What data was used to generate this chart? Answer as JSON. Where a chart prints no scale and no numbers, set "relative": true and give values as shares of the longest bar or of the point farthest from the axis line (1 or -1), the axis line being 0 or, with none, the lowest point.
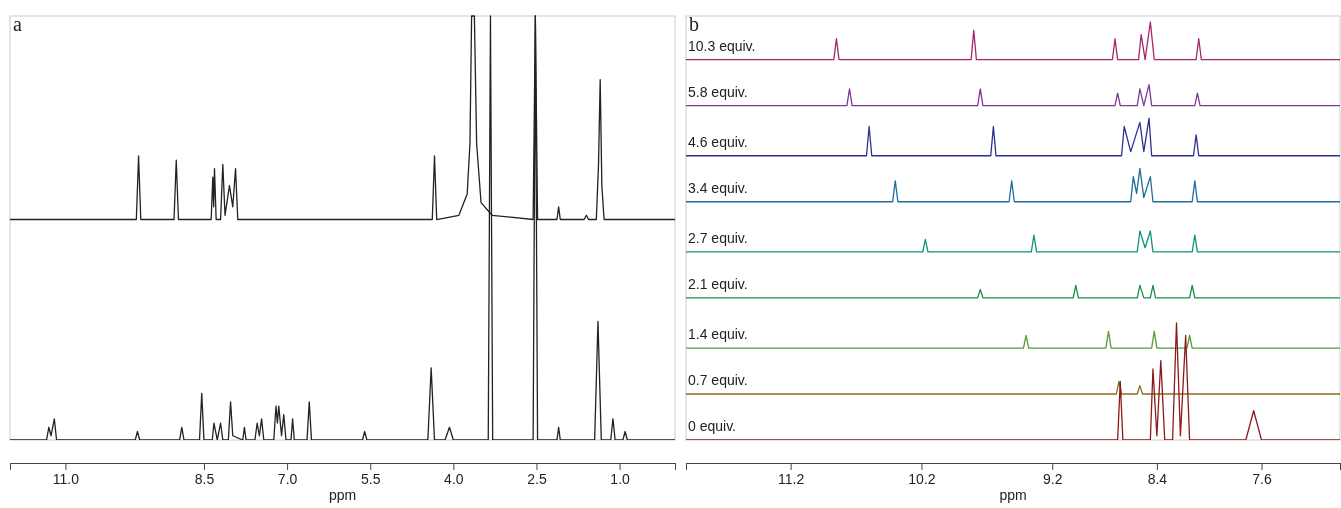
{
  "chart_data": [
    {
      "type": "line",
      "relative": true,
      "xlabel": "ppm",
      "annotations": [
        "a"
      ],
      "xlim": [
        12.0,
        0.0
      ],
      "xticks": [
        {
          "value": 12,
          "label": null
        },
        {
          "value": 11,
          "label": "11.0"
        },
        {
          "value": 8.5,
          "label": "8.5"
        },
        {
          "value": 7,
          "label": "7.0"
        },
        {
          "value": 5.5,
          "label": "5.5"
        },
        {
          "value": 4,
          "label": "4.0"
        },
        {
          "value": 2.5,
          "label": "2.5"
        },
        {
          "value": 1,
          "label": "1.0"
        },
        {
          "value": 0,
          "label": null
        }
      ],
      "series": [
        {
          "color": "#222222",
          "x": [
            12.0,
            9.72,
            9.68,
            9.64,
            9.04,
            9.0,
            8.96,
            8.37,
            8.34,
            8.325,
            8.31,
            8.28,
            8.2,
            8.16,
            8.12,
            8.04,
            7.98,
            7.93,
            7.89,
            4.38,
            4.34,
            4.3,
            3.9,
            3.75,
            3.7,
            3.67,
            3.62,
            3.58,
            3.5,
            3.3,
            2.56,
            2.52,
            2.48,
            2.13,
            2.1,
            2.07,
            1.64,
            1.6,
            1.56,
            1.42,
            1.38,
            1.35,
            1.32,
            1.28,
            0.0
          ],
          "values": [
            0.52,
            0.52,
            0.67,
            0.52,
            0.52,
            0.66,
            0.52,
            0.52,
            0.62,
            0.55,
            0.64,
            0.52,
            0.52,
            0.65,
            0.53,
            0.6,
            0.55,
            0.64,
            0.52,
            0.52,
            0.67,
            0.52,
            0.53,
            0.58,
            0.7,
            1,
            1,
            0.7,
            0.56,
            0.53,
            0.52,
            1,
            0.52,
            0.52,
            0.55,
            0.52,
            0.52,
            0.53,
            0.52,
            0.52,
            0.65,
            0.85,
            0.6,
            0.52,
            0.52
          ]
        },
        {
          "color": "#222222",
          "x": [
            12.0,
            11.34,
            11.3,
            11.26,
            11.2,
            11.16,
            9.74,
            9.7,
            9.66,
            8.94,
            8.9,
            8.86,
            8.58,
            8.54,
            8.5,
            8.35,
            8.32,
            8.26,
            8.2,
            8.16,
            8.06,
            8.02,
            7.98,
            7.8,
            7.77,
            7.74,
            7.58,
            7.54,
            7.5,
            7.46,
            7.42,
            7.24,
            7.2,
            7.175,
            7.15,
            7.1,
            7.06,
            7.02,
            6.93,
            6.9,
            6.87,
            6.64,
            6.6,
            6.56,
            5.64,
            5.6,
            5.56,
            4.46,
            4.4,
            4.34,
            4.15,
            4.07,
            4.0,
            3.37,
            3.33,
            3.29,
            2.56,
            2.52,
            2.48,
            2.13,
            2.1,
            2.07,
            1.45,
            1.39,
            1.33,
            1.16,
            1.12,
            1.08,
            0.94,
            0.9,
            0.86,
            0.0
          ],
          "values": [
            0,
            0,
            0.03,
            0.01,
            0.05,
            0,
            0,
            0.02,
            0,
            0,
            0.03,
            0,
            0,
            0.11,
            0,
            0,
            0.04,
            0,
            0.04,
            0,
            0,
            0.09,
            0.01,
            0,
            0.03,
            0,
            0,
            0.04,
            0.01,
            0.05,
            0,
            0,
            0.08,
            0.04,
            0.08,
            0.01,
            0.06,
            0,
            0,
            0.05,
            0,
            0,
            0.09,
            0,
            0,
            0.02,
            0,
            0,
            0.17,
            0,
            0,
            0.03,
            0,
            0,
            1,
            0,
            0,
            1,
            0,
            0,
            0.03,
            0,
            0,
            0.28,
            0,
            0,
            0.05,
            0,
            0,
            0.02,
            0,
            0
          ]
        }
      ]
    },
    {
      "type": "line",
      "relative": true,
      "xlabel": "ppm",
      "annotations": [
        "b"
      ],
      "xlim": [
        12.0,
        7.0
      ],
      "xticks": [
        {
          "value": 12,
          "label": null
        },
        {
          "value": 11.2,
          "label": "11.2"
        },
        {
          "value": 10.2,
          "label": "10.2"
        },
        {
          "value": 9.2,
          "label": "9.2"
        },
        {
          "value": 8.4,
          "label": "8.4"
        },
        {
          "value": 7.6,
          "label": "7.6"
        },
        {
          "value": 7,
          "label": null
        }
      ],
      "series": [
        {
          "name": "10.3 equiv.",
          "color": "#a3286e",
          "x": [
            12.0,
            10.87,
            10.85,
            10.83,
            9.82,
            9.8,
            9.78,
            8.74,
            8.72,
            8.7,
            8.54,
            8.52,
            8.49,
            8.45,
            8.42,
            8.1,
            8.08,
            8.06,
            7.0
          ],
          "values": [
            0.91,
            0.91,
            0.96,
            0.91,
            0.91,
            0.98,
            0.91,
            0.91,
            0.96,
            0.91,
            0.91,
            0.97,
            0.91,
            1,
            0.91,
            0.91,
            0.96,
            0.91,
            0.91
          ]
        },
        {
          "name": "5.8 equiv.",
          "color": "#7b3a9a",
          "x": [
            12.0,
            10.77,
            10.75,
            10.73,
            9.77,
            9.75,
            9.73,
            8.72,
            8.7,
            8.68,
            8.55,
            8.53,
            8.5,
            8.46,
            8.44,
            8.11,
            8.09,
            8.07,
            7.0
          ],
          "values": [
            0.8,
            0.8,
            0.84,
            0.8,
            0.8,
            0.84,
            0.8,
            0.8,
            0.83,
            0.8,
            0.8,
            0.84,
            0.8,
            0.85,
            0.8,
            0.8,
            0.83,
            0.8,
            0.8
          ]
        },
        {
          "name": "4.6 equiv.",
          "color": "#2e3192",
          "x": [
            12.0,
            10.62,
            10.6,
            10.58,
            9.67,
            9.65,
            9.63,
            8.67,
            8.65,
            8.6,
            8.53,
            8.5,
            8.46,
            8.44,
            8.12,
            8.1,
            8.08,
            7.0
          ],
          "values": [
            0.68,
            0.68,
            0.75,
            0.68,
            0.68,
            0.75,
            0.68,
            0.68,
            0.75,
            0.69,
            0.76,
            0.69,
            0.77,
            0.68,
            0.68,
            0.73,
            0.68,
            0.68
          ]
        },
        {
          "name": "3.4 equiv.",
          "color": "#1f6e9c",
          "x": [
            12.0,
            10.42,
            10.4,
            10.38,
            9.53,
            9.51,
            9.49,
            8.6,
            8.58,
            8.555,
            8.53,
            8.5,
            8.45,
            8.43,
            8.13,
            8.11,
            8.09,
            7.0
          ],
          "values": [
            0.57,
            0.57,
            0.62,
            0.57,
            0.57,
            0.62,
            0.57,
            0.57,
            0.63,
            0.59,
            0.65,
            0.58,
            0.63,
            0.57,
            0.57,
            0.62,
            0.57,
            0.57
          ]
        },
        {
          "name": "2.7 equiv.",
          "color": "#14917a",
          "x": [
            12.0,
            10.19,
            10.17,
            10.15,
            9.36,
            9.34,
            9.32,
            8.55,
            8.53,
            8.49,
            8.45,
            8.43,
            8.13,
            8.11,
            8.09,
            7.0
          ],
          "values": [
            0.45,
            0.45,
            0.48,
            0.45,
            0.45,
            0.49,
            0.45,
            0.45,
            0.5,
            0.46,
            0.5,
            0.45,
            0.45,
            0.49,
            0.45,
            0.45
          ]
        },
        {
          "name": "2.1 equiv.",
          "color": "#1b8f45",
          "x": [
            12.0,
            9.77,
            9.75,
            9.73,
            9.04,
            9.02,
            9.0,
            8.55,
            8.53,
            8.5,
            8.45,
            8.43,
            8.41,
            8.15,
            8.13,
            8.11,
            7.0
          ],
          "values": [
            0.34,
            0.34,
            0.36,
            0.34,
            0.34,
            0.37,
            0.34,
            0.34,
            0.37,
            0.34,
            0.34,
            0.37,
            0.34,
            0.34,
            0.37,
            0.34,
            0.34
          ]
        },
        {
          "name": "1.4 equiv.",
          "color": "#5a9a3a",
          "x": [
            12.0,
            9.42,
            9.4,
            9.38,
            8.79,
            8.77,
            8.75,
            8.44,
            8.42,
            8.4,
            8.17,
            8.15,
            8.13,
            7.0
          ],
          "values": [
            0.22,
            0.22,
            0.25,
            0.22,
            0.22,
            0.26,
            0.22,
            0.22,
            0.26,
            0.22,
            0.22,
            0.25,
            0.22,
            0.22
          ]
        },
        {
          "name": "0.7 equiv.",
          "color": "#8c6a1e",
          "x": [
            12.0,
            8.71,
            8.69,
            8.67,
            8.55,
            8.53,
            8.51,
            7.0
          ],
          "values": [
            0.11,
            0.11,
            0.14,
            0.11,
            0.11,
            0.13,
            0.11,
            0.11
          ]
        },
        {
          "name": "0 equiv.",
          "color": "#8b1a1a",
          "x": [
            12.0,
            8.7,
            8.68,
            8.66,
            8.45,
            8.43,
            8.4,
            8.37,
            8.34,
            8.28,
            8.25,
            8.22,
            8.18,
            8.15,
            7.72,
            7.66,
            7.6,
            7.0
          ],
          "values": [
            0,
            0,
            0.14,
            0,
            0,
            0.17,
            0.01,
            0.19,
            0,
            0,
            0.28,
            0.01,
            0.25,
            0,
            0,
            0.07,
            0,
            0
          ]
        }
      ]
    }
  ]
}
